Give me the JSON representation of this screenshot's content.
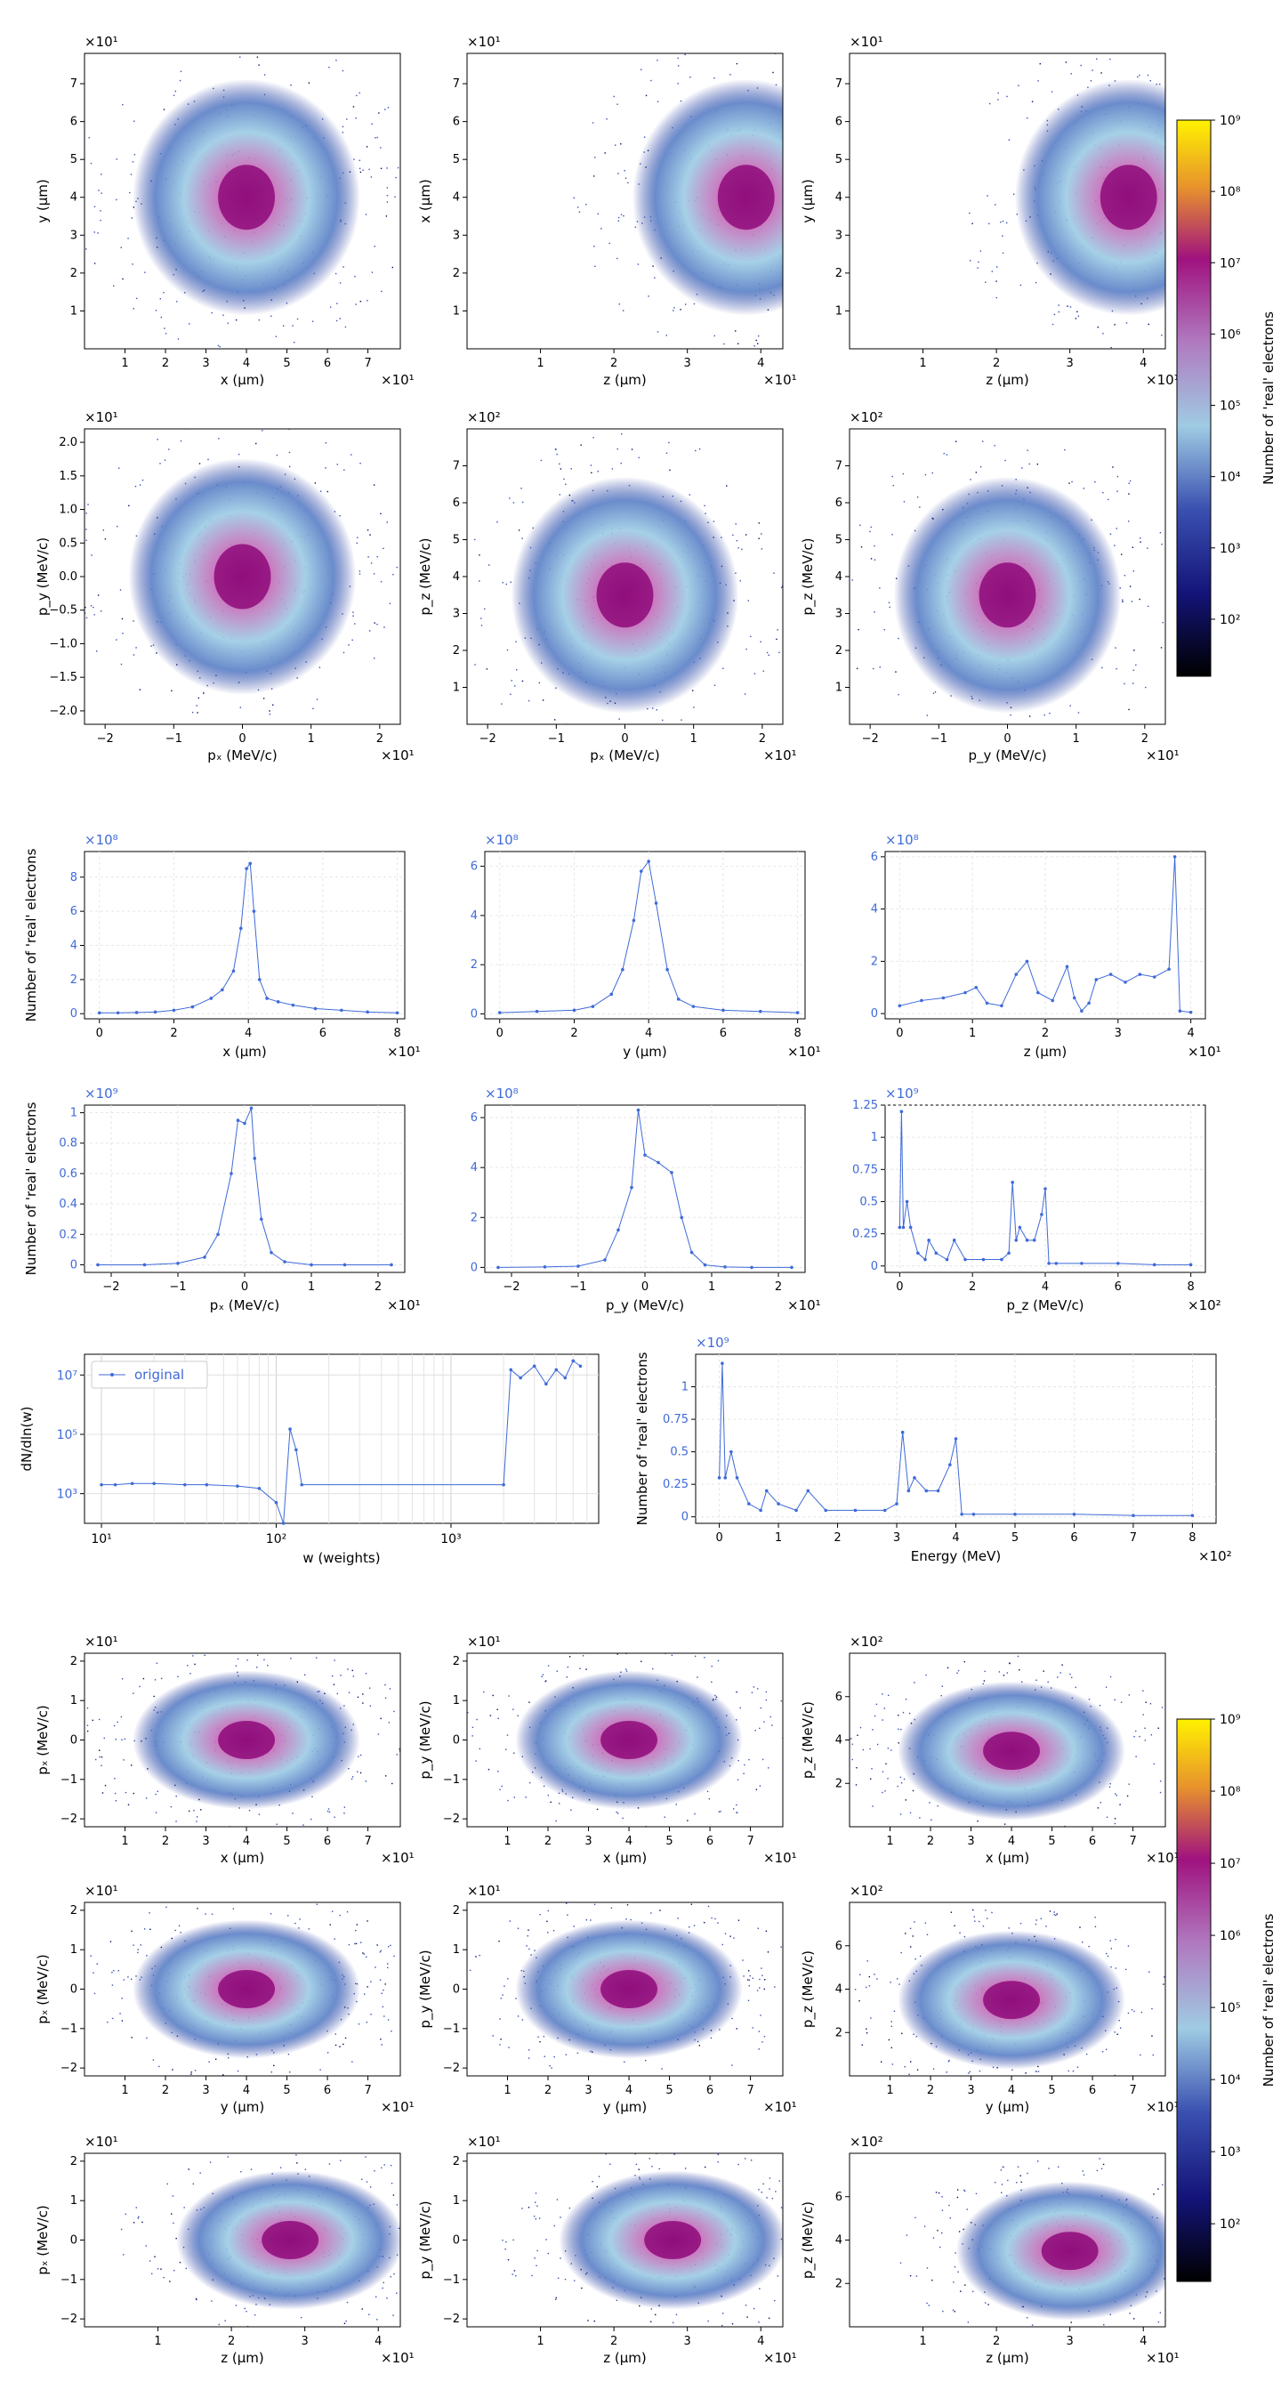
{
  "page": {
    "title": ""
  },
  "colorbar": {
    "label": "Number of 'real' electrons",
    "ticks": [
      "10²",
      "10³",
      "10⁴",
      "10⁵",
      "10⁶",
      "10⁷",
      "10⁸",
      "10⁹"
    ]
  },
  "chart_data": [
    {
      "id": "h1",
      "type": "heatmap",
      "xlabel": "x (μm)",
      "ylabel": "y (μm)",
      "xlim": [
        0,
        7.8
      ],
      "ylim": [
        0,
        7.8
      ],
      "xticks": [
        "1",
        "2",
        "3",
        "4",
        "5",
        "6",
        "7"
      ],
      "yticks": [
        "1",
        "2",
        "3",
        "4",
        "5",
        "6",
        "7"
      ],
      "xmult": "×10¹",
      "ymult": "×10¹",
      "peak": [
        4.0,
        4.0
      ]
    },
    {
      "id": "h2",
      "type": "heatmap",
      "xlabel": "z (μm)",
      "ylabel": "x (μm)",
      "xlim": [
        0,
        4.3
      ],
      "ylim": [
        0,
        7.8
      ],
      "xticks": [
        "1",
        "2",
        "3",
        "4"
      ],
      "yticks": [
        "1",
        "2",
        "3",
        "4",
        "5",
        "6",
        "7"
      ],
      "xmult": "×10¹",
      "ymult": "×10¹",
      "peak": [
        3.8,
        4.0
      ]
    },
    {
      "id": "h3",
      "type": "heatmap",
      "xlabel": "z (μm)",
      "ylabel": "y (μm)",
      "xlim": [
        0,
        4.3
      ],
      "ylim": [
        0,
        7.8
      ],
      "xticks": [
        "1",
        "2",
        "3",
        "4"
      ],
      "yticks": [
        "1",
        "2",
        "3",
        "4",
        "5",
        "6",
        "7"
      ],
      "xmult": "×10¹",
      "ymult": "×10¹",
      "peak": [
        3.8,
        4.0
      ]
    },
    {
      "id": "h4",
      "type": "heatmap",
      "xlabel": "pₓ (MeV/c)",
      "ylabel": "p_y (MeV/c)",
      "xlim": [
        -2.3,
        2.3
      ],
      "ylim": [
        -2.2,
        2.2
      ],
      "xticks": [
        "−2",
        "−1",
        "0",
        "1",
        "2"
      ],
      "yticks": [
        "−2.0",
        "−1.5",
        "−1.0",
        "−0.5",
        "0.0",
        "0.5",
        "1.0",
        "1.5",
        "2.0"
      ],
      "xmult": "×10¹",
      "ymult": "×10¹",
      "peak": [
        0,
        0
      ]
    },
    {
      "id": "h5",
      "type": "heatmap",
      "xlabel": "pₓ (MeV/c)",
      "ylabel": "p_z (MeV/c)",
      "xlim": [
        -2.3,
        2.3
      ],
      "ylim": [
        0,
        8
      ],
      "xticks": [
        "−2",
        "−1",
        "0",
        "1",
        "2"
      ],
      "yticks": [
        "1",
        "2",
        "3",
        "4",
        "5",
        "6",
        "7"
      ],
      "xmult": "×10¹",
      "ymult": "×10²",
      "peak": [
        0,
        3.5
      ]
    },
    {
      "id": "h6",
      "type": "heatmap",
      "xlabel": "p_y (MeV/c)",
      "ylabel": "p_z (MeV/c)",
      "xlim": [
        -2.3,
        2.3
      ],
      "ylim": [
        0,
        8
      ],
      "xticks": [
        "−2",
        "−1",
        "0",
        "1",
        "2"
      ],
      "yticks": [
        "1",
        "2",
        "3",
        "4",
        "5",
        "6",
        "7"
      ],
      "xmult": "×10¹",
      "ymult": "×10²",
      "peak": [
        0,
        3.5
      ]
    },
    {
      "id": "l1",
      "type": "line",
      "xlabel": "x (μm)",
      "ylabel": "Number of 'real' electrons",
      "xmult": "×10¹",
      "ymult": "×10⁸",
      "xlim": [
        -0.4,
        8.2
      ],
      "ylim": [
        -0.3,
        9.5
      ],
      "xticks": [
        0,
        2,
        4,
        6,
        8
      ],
      "yticks": [
        0,
        2,
        4,
        6,
        8
      ],
      "x": [
        0,
        0.5,
        1,
        1.5,
        2,
        2.5,
        3,
        3.3,
        3.6,
        3.8,
        3.95,
        4.05,
        4.15,
        4.3,
        4.5,
        4.8,
        5.2,
        5.8,
        6.5,
        7.2,
        8
      ],
      "y": [
        0.05,
        0.05,
        0.07,
        0.1,
        0.2,
        0.4,
        0.9,
        1.4,
        2.5,
        5,
        8.5,
        8.8,
        6,
        2,
        0.9,
        0.7,
        0.5,
        0.3,
        0.2,
        0.1,
        0.05
      ]
    },
    {
      "id": "l2",
      "type": "line",
      "xlabel": "y (μm)",
      "ylabel": "",
      "xmult": "×10¹",
      "ymult": "×10⁸",
      "xlim": [
        -0.4,
        8.2
      ],
      "ylim": [
        -0.2,
        6.6
      ],
      "xticks": [
        0,
        2,
        4,
        6,
        8
      ],
      "yticks": [
        0,
        2,
        4,
        6
      ],
      "x": [
        0,
        1,
        2,
        2.5,
        3,
        3.3,
        3.6,
        3.8,
        4,
        4.2,
        4.5,
        4.8,
        5.2,
        6,
        7,
        8
      ],
      "y": [
        0.05,
        0.1,
        0.15,
        0.3,
        0.8,
        1.8,
        3.8,
        5.8,
        6.2,
        4.5,
        1.8,
        0.6,
        0.3,
        0.15,
        0.1,
        0.05
      ]
    },
    {
      "id": "l3",
      "type": "line",
      "xlabel": "z (μm)",
      "ylabel": "",
      "xmult": "×10¹",
      "ymult": "×10⁸",
      "xlim": [
        -0.2,
        4.2
      ],
      "ylim": [
        -0.2,
        6.2
      ],
      "xticks": [
        0,
        1,
        2,
        3,
        4
      ],
      "yticks": [
        0,
        2,
        4,
        6
      ],
      "x": [
        0,
        0.3,
        0.6,
        0.9,
        1.05,
        1.2,
        1.4,
        1.6,
        1.75,
        1.9,
        2.1,
        2.3,
        2.4,
        2.5,
        2.6,
        2.7,
        2.9,
        3.1,
        3.3,
        3.5,
        3.7,
        3.78,
        3.85,
        4.0
      ],
      "y": [
        0.3,
        0.5,
        0.6,
        0.8,
        1.0,
        0.4,
        0.3,
        1.5,
        2.0,
        0.8,
        0.5,
        1.8,
        0.6,
        0.1,
        0.4,
        1.3,
        1.5,
        1.2,
        1.5,
        1.4,
        1.7,
        6.0,
        0.1,
        0.05
      ]
    },
    {
      "id": "l4",
      "type": "line",
      "xlabel": "pₓ (MeV/c)",
      "ylabel": "Number of 'real' electrons",
      "xmult": "×10¹",
      "ymult": "×10⁹",
      "xlim": [
        -2.4,
        2.4
      ],
      "ylim": [
        -0.05,
        1.05
      ],
      "xticks": [
        -2,
        -1,
        0,
        1,
        2
      ],
      "yticks": [
        0,
        0.2,
        0.4,
        0.6,
        0.8,
        1.0
      ],
      "x": [
        -2.2,
        -1.5,
        -1,
        -0.6,
        -0.4,
        -0.2,
        -0.1,
        0,
        0.1,
        0.15,
        0.25,
        0.4,
        0.6,
        1,
        1.5,
        2.2
      ],
      "y": [
        0.0,
        0.0,
        0.01,
        0.05,
        0.2,
        0.6,
        0.95,
        0.93,
        1.03,
        0.7,
        0.3,
        0.08,
        0.02,
        0.0,
        0.0,
        0.0
      ]
    },
    {
      "id": "l5",
      "type": "line",
      "xlabel": "p_y (MeV/c)",
      "ylabel": "",
      "xmult": "×10¹",
      "ymult": "×10⁸",
      "xlim": [
        -2.4,
        2.4
      ],
      "ylim": [
        -0.2,
        6.5
      ],
      "xticks": [
        -2,
        -1,
        0,
        1,
        2
      ],
      "yticks": [
        0,
        2,
        4,
        6
      ],
      "x": [
        -2.2,
        -1.5,
        -1,
        -0.6,
        -0.4,
        -0.2,
        -0.1,
        0,
        0.2,
        0.4,
        0.55,
        0.7,
        0.9,
        1.2,
        1.6,
        2.2
      ],
      "y": [
        0.0,
        0.02,
        0.05,
        0.3,
        1.5,
        3.2,
        6.3,
        4.5,
        4.2,
        3.8,
        2.0,
        0.6,
        0.1,
        0.02,
        0.0,
        0.0
      ]
    },
    {
      "id": "l6",
      "type": "line",
      "xlabel": "p_z (MeV/c)",
      "ylabel": "",
      "xmult": "×10²",
      "ymult": "×10⁹",
      "xlim": [
        -0.4,
        8.4
      ],
      "ylim": [
        -0.05,
        1.25
      ],
      "xticks": [
        0,
        2,
        4,
        6,
        8
      ],
      "yticks": [
        0,
        0.25,
        0.5,
        0.75,
        1.0,
        1.25
      ],
      "x": [
        0,
        0.05,
        0.1,
        0.2,
        0.3,
        0.5,
        0.7,
        0.8,
        1.0,
        1.3,
        1.5,
        1.8,
        2.3,
        2.8,
        3.0,
        3.1,
        3.2,
        3.3,
        3.5,
        3.7,
        3.9,
        4.0,
        4.1,
        4.3,
        5,
        6,
        7,
        8
      ],
      "y": [
        0.3,
        1.2,
        0.3,
        0.5,
        0.3,
        0.1,
        0.05,
        0.2,
        0.1,
        0.05,
        0.2,
        0.05,
        0.05,
        0.05,
        0.1,
        0.65,
        0.2,
        0.3,
        0.2,
        0.2,
        0.4,
        0.6,
        0.02,
        0.02,
        0.02,
        0.02,
        0.01,
        0.01
      ]
    },
    {
      "id": "w",
      "type": "line",
      "xlabel": "w (weights)",
      "ylabel": "dN/dln(w)",
      "legend": "original",
      "xlog": true,
      "ylog": true,
      "xlim": [
        8,
        7000
      ],
      "ylim": [
        100,
        50000000
      ],
      "x": [
        10,
        12,
        15,
        20,
        30,
        40,
        60,
        80,
        100,
        110,
        120,
        130,
        140,
        2000,
        2200,
        2500,
        3000,
        3500,
        4000,
        4500,
        5000,
        5500
      ],
      "y": [
        2000,
        2000,
        2200,
        2200,
        2000,
        2000,
        1800,
        1500,
        500,
        100,
        150000,
        30000,
        2000,
        2000,
        15000000,
        8000000,
        20000000,
        5000000,
        15000000,
        8000000,
        30000000,
        20000000
      ]
    },
    {
      "id": "e",
      "type": "line",
      "xlabel": "Energy (MeV)",
      "ylabel": "Number of 'real' electrons",
      "xmult": "×10²",
      "ymult": "×10⁹",
      "xlim": [
        -0.4,
        8.4
      ],
      "ylim": [
        -0.05,
        1.25
      ],
      "xticks": [
        0,
        1,
        2,
        3,
        4,
        5,
        6,
        7,
        8
      ],
      "yticks": [
        0,
        0.25,
        0.5,
        0.75,
        1.0
      ],
      "x": [
        0,
        0.05,
        0.1,
        0.2,
        0.3,
        0.5,
        0.7,
        0.8,
        1.0,
        1.3,
        1.5,
        1.8,
        2.3,
        2.8,
        3.0,
        3.1,
        3.2,
        3.3,
        3.5,
        3.7,
        3.9,
        4.0,
        4.1,
        4.3,
        5,
        6,
        7,
        8
      ],
      "y": [
        0.3,
        1.18,
        0.3,
        0.5,
        0.3,
        0.1,
        0.05,
        0.2,
        0.1,
        0.05,
        0.2,
        0.05,
        0.05,
        0.05,
        0.1,
        0.65,
        0.2,
        0.3,
        0.2,
        0.2,
        0.4,
        0.6,
        0.02,
        0.02,
        0.02,
        0.02,
        0.01,
        0.01
      ]
    },
    {
      "id": "p1",
      "type": "heatmap",
      "xlabel": "x (μm)",
      "ylabel": "pₓ (MeV/c)",
      "xlim": [
        0,
        7.8
      ],
      "ylim": [
        -2.2,
        2.2
      ],
      "xticks": [
        "1",
        "2",
        "3",
        "4",
        "5",
        "6",
        "7"
      ],
      "yticks": [
        "−2",
        "−1",
        "0",
        "1",
        "2"
      ],
      "xmult": "×10¹",
      "ymult": "×10¹",
      "peak": [
        4,
        0
      ]
    },
    {
      "id": "p2",
      "type": "heatmap",
      "xlabel": "x (μm)",
      "ylabel": "p_y (MeV/c)",
      "xlim": [
        0,
        7.8
      ],
      "ylim": [
        -2.2,
        2.2
      ],
      "xticks": [
        "1",
        "2",
        "3",
        "4",
        "5",
        "6",
        "7"
      ],
      "yticks": [
        "−2",
        "−1",
        "0",
        "1",
        "2"
      ],
      "xmult": "×10¹",
      "ymult": "×10¹",
      "peak": [
        4,
        0
      ]
    },
    {
      "id": "p3",
      "type": "heatmap",
      "xlabel": "x (μm)",
      "ylabel": "p_z (MeV/c)",
      "xlim": [
        0,
        7.8
      ],
      "ylim": [
        0,
        8
      ],
      "xticks": [
        "1",
        "2",
        "3",
        "4",
        "5",
        "6",
        "7"
      ],
      "yticks": [
        "2",
        "4",
        "6"
      ],
      "xmult": "×10¹",
      "ymult": "×10²",
      "peak": [
        4,
        3.5
      ]
    },
    {
      "id": "p4",
      "type": "heatmap",
      "xlabel": "y (μm)",
      "ylabel": "pₓ (MeV/c)",
      "xlim": [
        0,
        7.8
      ],
      "ylim": [
        -2.2,
        2.2
      ],
      "xticks": [
        "1",
        "2",
        "3",
        "4",
        "5",
        "6",
        "7"
      ],
      "yticks": [
        "−2",
        "−1",
        "0",
        "1",
        "2"
      ],
      "xmult": "×10¹",
      "ymult": "×10¹",
      "peak": [
        4,
        0
      ]
    },
    {
      "id": "p5",
      "type": "heatmap",
      "xlabel": "y (μm)",
      "ylabel": "p_y (MeV/c)",
      "xlim": [
        0,
        7.8
      ],
      "ylim": [
        -2.2,
        2.2
      ],
      "xticks": [
        "1",
        "2",
        "3",
        "4",
        "5",
        "6",
        "7"
      ],
      "yticks": [
        "−2",
        "−1",
        "0",
        "1",
        "2"
      ],
      "xmult": "×10¹",
      "ymult": "×10¹",
      "peak": [
        4,
        0
      ]
    },
    {
      "id": "p6",
      "type": "heatmap",
      "xlabel": "y (μm)",
      "ylabel": "p_z (MeV/c)",
      "xlim": [
        0,
        7.8
      ],
      "ylim": [
        0,
        8
      ],
      "xticks": [
        "1",
        "2",
        "3",
        "4",
        "5",
        "6",
        "7"
      ],
      "yticks": [
        "2",
        "4",
        "6"
      ],
      "xmult": "×10¹",
      "ymult": "×10²",
      "peak": [
        4,
        3.5
      ]
    },
    {
      "id": "p7",
      "type": "heatmap",
      "xlabel": "z (μm)",
      "ylabel": "pₓ (MeV/c)",
      "xlim": [
        0,
        4.3
      ],
      "ylim": [
        -2.2,
        2.2
      ],
      "xticks": [
        "1",
        "2",
        "3",
        "4"
      ],
      "yticks": [
        "−2",
        "−1",
        "0",
        "1",
        "2"
      ],
      "xmult": "×10¹",
      "ymult": "×10¹",
      "peak": [
        2.8,
        0
      ]
    },
    {
      "id": "p8",
      "type": "heatmap",
      "xlabel": "z (μm)",
      "ylabel": "p_y (MeV/c)",
      "xlim": [
        0,
        4.3
      ],
      "ylim": [
        -2.2,
        2.2
      ],
      "xticks": [
        "1",
        "2",
        "3",
        "4"
      ],
      "yticks": [
        "−2",
        "−1",
        "0",
        "1",
        "2"
      ],
      "xmult": "×10¹",
      "ymult": "×10¹",
      "peak": [
        2.8,
        0
      ]
    },
    {
      "id": "p9",
      "type": "heatmap",
      "xlabel": "z (μm)",
      "ylabel": "p_z (MeV/c)",
      "xlim": [
        0,
        4.3
      ],
      "ylim": [
        0,
        8
      ],
      "xticks": [
        "1",
        "2",
        "3",
        "4"
      ],
      "yticks": [
        "2",
        "4",
        "6"
      ],
      "xmult": "×10¹",
      "ymult": "×10²",
      "peak": [
        3.0,
        3.5
      ]
    }
  ]
}
